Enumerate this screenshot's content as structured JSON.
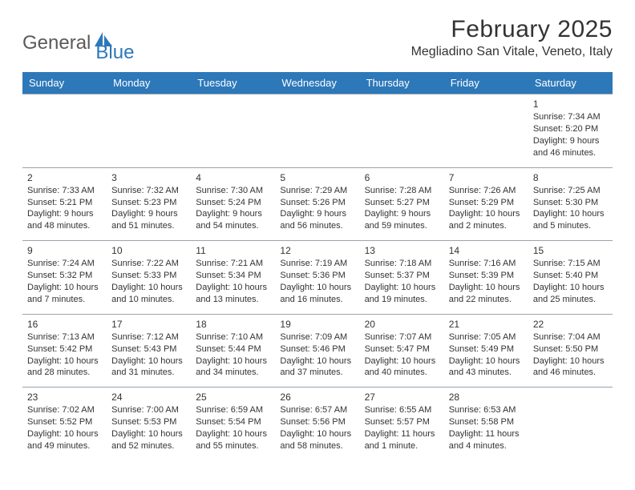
{
  "logo": {
    "part1": "General",
    "part2": "Blue"
  },
  "title": "February 2025",
  "location": "Megliadino San Vitale, Veneto, Italy",
  "colors": {
    "header_bg": "#2d78b9",
    "header_text": "#ffffff",
    "grid_border": "#9aa3ab",
    "text": "#333333",
    "logo_gray": "#5a5a5a",
    "logo_blue": "#2d78b9",
    "page_bg": "#ffffff"
  },
  "fonts": {
    "title_size": 30,
    "location_size": 16,
    "header_size": 13,
    "cell_size": 11,
    "daynum_size": 12
  },
  "days": [
    "Sunday",
    "Monday",
    "Tuesday",
    "Wednesday",
    "Thursday",
    "Friday",
    "Saturday"
  ],
  "weeks": [
    [
      null,
      null,
      null,
      null,
      null,
      null,
      {
        "n": "1",
        "sunrise": "Sunrise: 7:34 AM",
        "sunset": "Sunset: 5:20 PM",
        "daylight": "Daylight: 9 hours and 46 minutes."
      }
    ],
    [
      {
        "n": "2",
        "sunrise": "Sunrise: 7:33 AM",
        "sunset": "Sunset: 5:21 PM",
        "daylight": "Daylight: 9 hours and 48 minutes."
      },
      {
        "n": "3",
        "sunrise": "Sunrise: 7:32 AM",
        "sunset": "Sunset: 5:23 PM",
        "daylight": "Daylight: 9 hours and 51 minutes."
      },
      {
        "n": "4",
        "sunrise": "Sunrise: 7:30 AM",
        "sunset": "Sunset: 5:24 PM",
        "daylight": "Daylight: 9 hours and 54 minutes."
      },
      {
        "n": "5",
        "sunrise": "Sunrise: 7:29 AM",
        "sunset": "Sunset: 5:26 PM",
        "daylight": "Daylight: 9 hours and 56 minutes."
      },
      {
        "n": "6",
        "sunrise": "Sunrise: 7:28 AM",
        "sunset": "Sunset: 5:27 PM",
        "daylight": "Daylight: 9 hours and 59 minutes."
      },
      {
        "n": "7",
        "sunrise": "Sunrise: 7:26 AM",
        "sunset": "Sunset: 5:29 PM",
        "daylight": "Daylight: 10 hours and 2 minutes."
      },
      {
        "n": "8",
        "sunrise": "Sunrise: 7:25 AM",
        "sunset": "Sunset: 5:30 PM",
        "daylight": "Daylight: 10 hours and 5 minutes."
      }
    ],
    [
      {
        "n": "9",
        "sunrise": "Sunrise: 7:24 AM",
        "sunset": "Sunset: 5:32 PM",
        "daylight": "Daylight: 10 hours and 7 minutes."
      },
      {
        "n": "10",
        "sunrise": "Sunrise: 7:22 AM",
        "sunset": "Sunset: 5:33 PM",
        "daylight": "Daylight: 10 hours and 10 minutes."
      },
      {
        "n": "11",
        "sunrise": "Sunrise: 7:21 AM",
        "sunset": "Sunset: 5:34 PM",
        "daylight": "Daylight: 10 hours and 13 minutes."
      },
      {
        "n": "12",
        "sunrise": "Sunrise: 7:19 AM",
        "sunset": "Sunset: 5:36 PM",
        "daylight": "Daylight: 10 hours and 16 minutes."
      },
      {
        "n": "13",
        "sunrise": "Sunrise: 7:18 AM",
        "sunset": "Sunset: 5:37 PM",
        "daylight": "Daylight: 10 hours and 19 minutes."
      },
      {
        "n": "14",
        "sunrise": "Sunrise: 7:16 AM",
        "sunset": "Sunset: 5:39 PM",
        "daylight": "Daylight: 10 hours and 22 minutes."
      },
      {
        "n": "15",
        "sunrise": "Sunrise: 7:15 AM",
        "sunset": "Sunset: 5:40 PM",
        "daylight": "Daylight: 10 hours and 25 minutes."
      }
    ],
    [
      {
        "n": "16",
        "sunrise": "Sunrise: 7:13 AM",
        "sunset": "Sunset: 5:42 PM",
        "daylight": "Daylight: 10 hours and 28 minutes."
      },
      {
        "n": "17",
        "sunrise": "Sunrise: 7:12 AM",
        "sunset": "Sunset: 5:43 PM",
        "daylight": "Daylight: 10 hours and 31 minutes."
      },
      {
        "n": "18",
        "sunrise": "Sunrise: 7:10 AM",
        "sunset": "Sunset: 5:44 PM",
        "daylight": "Daylight: 10 hours and 34 minutes."
      },
      {
        "n": "19",
        "sunrise": "Sunrise: 7:09 AM",
        "sunset": "Sunset: 5:46 PM",
        "daylight": "Daylight: 10 hours and 37 minutes."
      },
      {
        "n": "20",
        "sunrise": "Sunrise: 7:07 AM",
        "sunset": "Sunset: 5:47 PM",
        "daylight": "Daylight: 10 hours and 40 minutes."
      },
      {
        "n": "21",
        "sunrise": "Sunrise: 7:05 AM",
        "sunset": "Sunset: 5:49 PM",
        "daylight": "Daylight: 10 hours and 43 minutes."
      },
      {
        "n": "22",
        "sunrise": "Sunrise: 7:04 AM",
        "sunset": "Sunset: 5:50 PM",
        "daylight": "Daylight: 10 hours and 46 minutes."
      }
    ],
    [
      {
        "n": "23",
        "sunrise": "Sunrise: 7:02 AM",
        "sunset": "Sunset: 5:52 PM",
        "daylight": "Daylight: 10 hours and 49 minutes."
      },
      {
        "n": "24",
        "sunrise": "Sunrise: 7:00 AM",
        "sunset": "Sunset: 5:53 PM",
        "daylight": "Daylight: 10 hours and 52 minutes."
      },
      {
        "n": "25",
        "sunrise": "Sunrise: 6:59 AM",
        "sunset": "Sunset: 5:54 PM",
        "daylight": "Daylight: 10 hours and 55 minutes."
      },
      {
        "n": "26",
        "sunrise": "Sunrise: 6:57 AM",
        "sunset": "Sunset: 5:56 PM",
        "daylight": "Daylight: 10 hours and 58 minutes."
      },
      {
        "n": "27",
        "sunrise": "Sunrise: 6:55 AM",
        "sunset": "Sunset: 5:57 PM",
        "daylight": "Daylight: 11 hours and 1 minute."
      },
      {
        "n": "28",
        "sunrise": "Sunrise: 6:53 AM",
        "sunset": "Sunset: 5:58 PM",
        "daylight": "Daylight: 11 hours and 4 minutes."
      },
      null
    ]
  ]
}
